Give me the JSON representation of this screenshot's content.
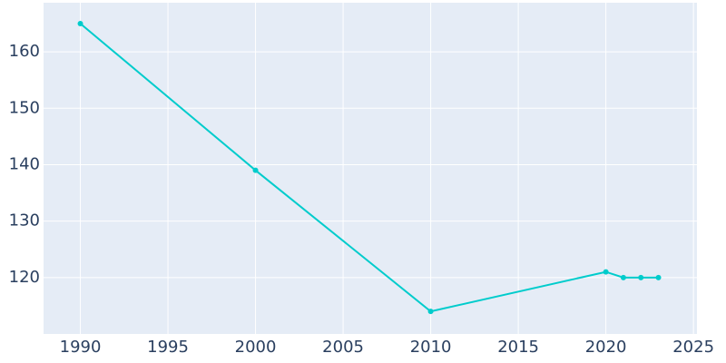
{
  "chart_data": {
    "type": "line",
    "x": [
      1990,
      2000,
      2010,
      2020,
      2021,
      2022,
      2023
    ],
    "series": [
      {
        "color": "#00cccc",
        "values": [
          165,
          139,
          114,
          121,
          120,
          120,
          120
        ]
      }
    ],
    "xlim": [
      1987.9,
      2025.2
    ],
    "xticks": [
      1990,
      1995,
      2000,
      2005,
      2010,
      2015,
      2020,
      2025
    ],
    "ylim": [
      110,
      168.7
    ],
    "yticks": [
      120,
      130,
      140,
      150,
      160
    ],
    "grid": true
  }
}
